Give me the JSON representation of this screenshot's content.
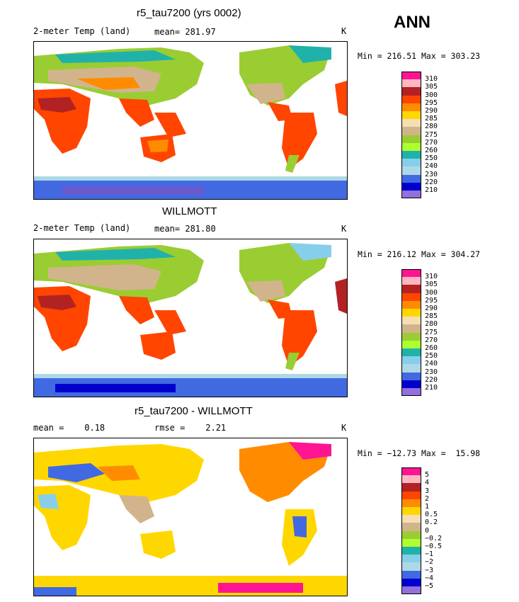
{
  "header": {
    "season": "ANN"
  },
  "panels": [
    {
      "id": "model",
      "title": "r5_tau7200 (yrs 0002)",
      "left_label": "2-meter Temp (land)",
      "stat_text": "mean= 281.97",
      "units": "K",
      "minmax": "Min = 216.51 Max = 303.23",
      "kind": "abs"
    },
    {
      "id": "obs",
      "title": "WILLMOTT",
      "left_label": "2-meter Temp (land)",
      "stat_text": "mean= 281.80",
      "units": "K",
      "minmax": "Min = 216.12 Max = 304.27",
      "kind": "abs"
    },
    {
      "id": "diff",
      "title": "r5_tau7200 - WILLMOTT",
      "left_label": "mean =    0.18",
      "stat_text": "rmse =    2.21",
      "units": "K",
      "minmax": "Min = −12.73 Max =  15.98",
      "kind": "diff"
    }
  ],
  "colorbars": {
    "abs": {
      "colors": [
        "#ff1493",
        "#ffb6c1",
        "#b22222",
        "#ff4500",
        "#ff8c00",
        "#ffd700",
        "#f5deb3",
        "#d2b48c",
        "#9acd32",
        "#adff2f",
        "#20b2aa",
        "#87ceeb",
        "#add8e6",
        "#4169e1",
        "#0000cd",
        "#9370db"
      ],
      "labels": [
        "310",
        "305",
        "300",
        "295",
        "290",
        "285",
        "280",
        "275",
        "270",
        "260",
        "250",
        "240",
        "230",
        "220",
        "210"
      ]
    },
    "diff": {
      "colors": [
        "#ff1493",
        "#ffb6c1",
        "#b22222",
        "#ff4500",
        "#ff8c00",
        "#ffd700",
        "#f5deb3",
        "#d2b48c",
        "#9acd32",
        "#adff2f",
        "#20b2aa",
        "#87ceeb",
        "#add8e6",
        "#4169e1",
        "#0000cd",
        "#9370db"
      ],
      "labels": [
        "5",
        "4",
        "3",
        "2",
        "1",
        "0.5",
        "0.2",
        "0",
        "−0.2",
        "−0.5",
        "−1",
        "−2",
        "−3",
        "−4",
        "−5"
      ]
    }
  }
}
